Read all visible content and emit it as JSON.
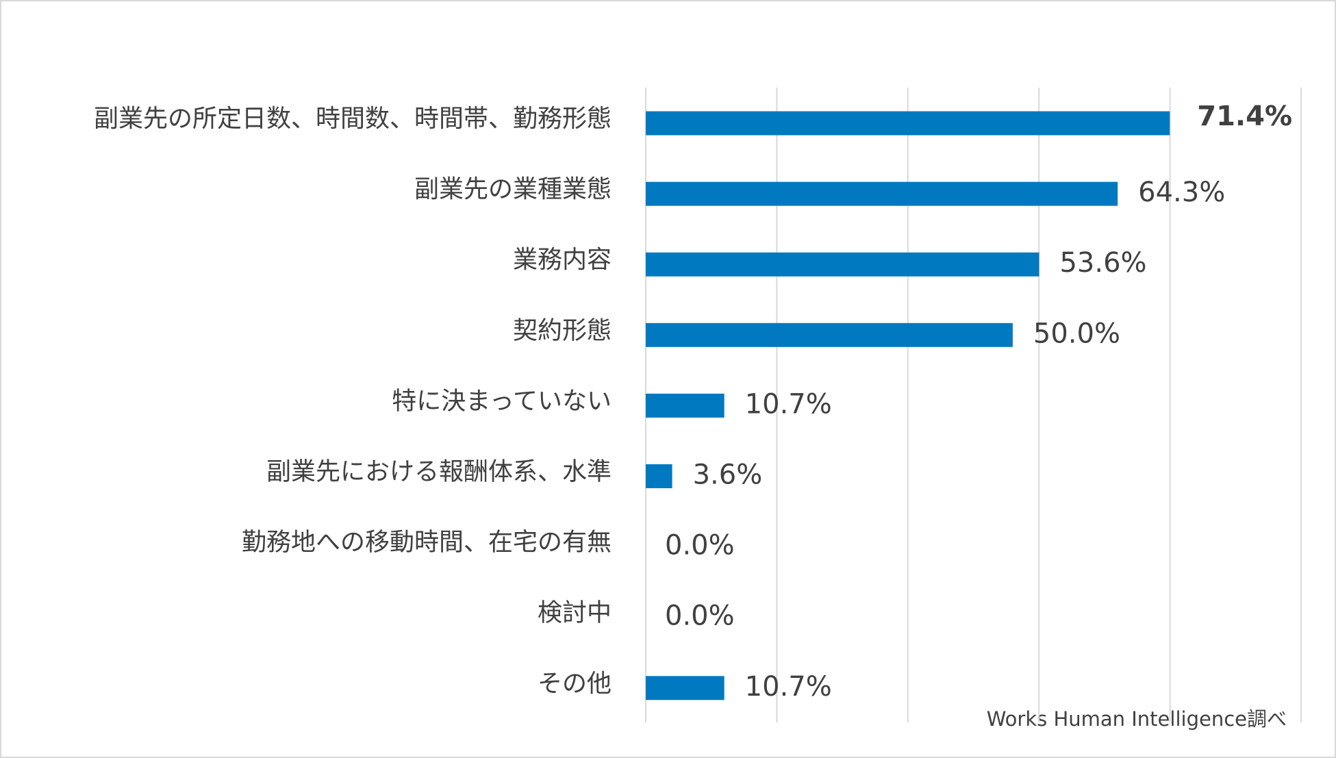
{
  "chart_data": {
    "type": "bar",
    "orientation": "horizontal",
    "categories": [
      "副業先の所定日数、時間数、時間帯、勤務形態",
      "副業先の業種業態",
      "業務内容",
      "契約形態",
      "特に決まっていない",
      "副業先における報酬体系、水準",
      "勤務地への移動時間、在宅の有無",
      "検討中",
      "その他"
    ],
    "values": [
      71.4,
      64.3,
      53.6,
      50.0,
      10.7,
      3.6,
      0.0,
      0.0,
      10.7
    ],
    "value_labels": [
      "71.4%",
      "64.3%",
      "53.6%",
      "50.0%",
      "10.7%",
      "3.6%",
      "0.0%",
      "0.0%",
      "10.7%"
    ],
    "color": "#0079c1",
    "xlim": [
      0,
      89.29
    ],
    "xticks": [
      0,
      17.86,
      35.71,
      53.57,
      71.43,
      89.29
    ],
    "grid": true,
    "source": "Works Human Intelligence調べ"
  }
}
